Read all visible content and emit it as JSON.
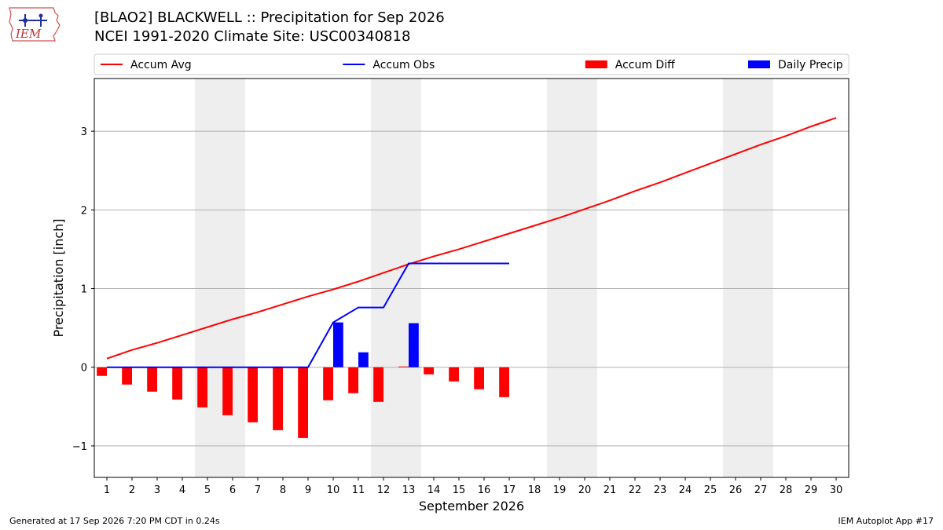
{
  "header": {
    "title_line1": "[BLAO2] BLACKWELL :: Precipitation for Sep 2026",
    "title_line2": "NCEI 1991-2020 Climate Site: USC00340818"
  },
  "logo": {
    "text": "IEM",
    "icon": "iem-logo-icon"
  },
  "footer": {
    "left": "Generated at 17 Sep 2026 7:20 PM CDT in 0.24s",
    "right": "IEM Autoplot App #17"
  },
  "colors": {
    "avg": "#ff0000",
    "obs": "#0000ff",
    "diff": "#ff0000",
    "daily": "#0000ff",
    "weekend": "#eeeeee",
    "grid": "#b0b0b0"
  },
  "chart_data": {
    "type": "bar",
    "title": "[BLAO2] BLACKWELL :: Precipitation for Sep 2026",
    "xlabel": "September 2026",
    "ylabel": "Precipitation [inch]",
    "xlim": [
      0.5,
      30.5
    ],
    "ylim": [
      -1.4,
      3.67
    ],
    "grid": true,
    "legend_placement": "top, above plot",
    "yticks": [
      {
        "value": -1,
        "label": "−1"
      },
      {
        "value": 0,
        "label": "0"
      },
      {
        "value": 1,
        "label": "1"
      },
      {
        "value": 2,
        "label": "2"
      },
      {
        "value": 3,
        "label": "3"
      }
    ],
    "x_tick_labels": [
      "1",
      "2",
      "3",
      "4",
      "5",
      "6",
      "7",
      "8",
      "9",
      "10",
      "11",
      "12",
      "13",
      "14",
      "15",
      "16",
      "17",
      "18",
      "19",
      "20",
      "21",
      "22",
      "23",
      "24",
      "25",
      "26",
      "27",
      "28",
      "29",
      "30"
    ],
    "weekend_spans": [
      [
        4.5,
        6.5
      ],
      [
        11.5,
        13.5
      ],
      [
        18.5,
        20.5
      ],
      [
        25.5,
        27.5
      ]
    ],
    "series": [
      {
        "name": "Accum Avg",
        "kind": "line",
        "color": "#ff0000",
        "x": [
          1,
          2,
          3,
          4,
          5,
          6,
          7,
          8,
          9,
          10,
          11,
          12,
          13,
          14,
          15,
          16,
          17,
          18,
          19,
          20,
          21,
          22,
          23,
          24,
          25,
          26,
          27,
          28,
          29,
          30
        ],
        "values": [
          0.11,
          0.22,
          0.31,
          0.41,
          0.51,
          0.61,
          0.7,
          0.8,
          0.9,
          0.99,
          1.09,
          1.2,
          1.31,
          1.41,
          1.5,
          1.6,
          1.7,
          1.8,
          1.9,
          2.01,
          2.12,
          2.24,
          2.35,
          2.47,
          2.59,
          2.71,
          2.83,
          2.94,
          3.06,
          3.17
        ]
      },
      {
        "name": "Accum Obs",
        "kind": "line",
        "color": "#0000ff",
        "x": [
          1,
          2,
          3,
          4,
          5,
          6,
          7,
          8,
          9,
          10,
          11,
          12,
          13,
          14,
          15,
          16,
          17
        ],
        "values": [
          0,
          0,
          0,
          0,
          0,
          0,
          0,
          0,
          0,
          0.57,
          0.76,
          0.76,
          1.32,
          1.32,
          1.32,
          1.32,
          1.32
        ]
      },
      {
        "name": "Accum Diff",
        "kind": "bar",
        "color": "#ff0000",
        "offset": -0.2,
        "x": [
          1,
          2,
          3,
          4,
          5,
          6,
          7,
          8,
          9,
          10,
          11,
          12,
          13,
          14,
          15,
          16,
          17
        ],
        "values": [
          -0.11,
          -0.22,
          -0.31,
          -0.41,
          -0.51,
          -0.61,
          -0.7,
          -0.8,
          -0.9,
          -0.42,
          -0.33,
          -0.44,
          0.01,
          -0.09,
          -0.18,
          -0.28,
          -0.38
        ]
      },
      {
        "name": "Daily Precip",
        "kind": "bar",
        "color": "#0000ff",
        "offset": 0.2,
        "x": [
          10,
          11,
          13
        ],
        "values": [
          0.57,
          0.19,
          0.56
        ]
      }
    ]
  }
}
